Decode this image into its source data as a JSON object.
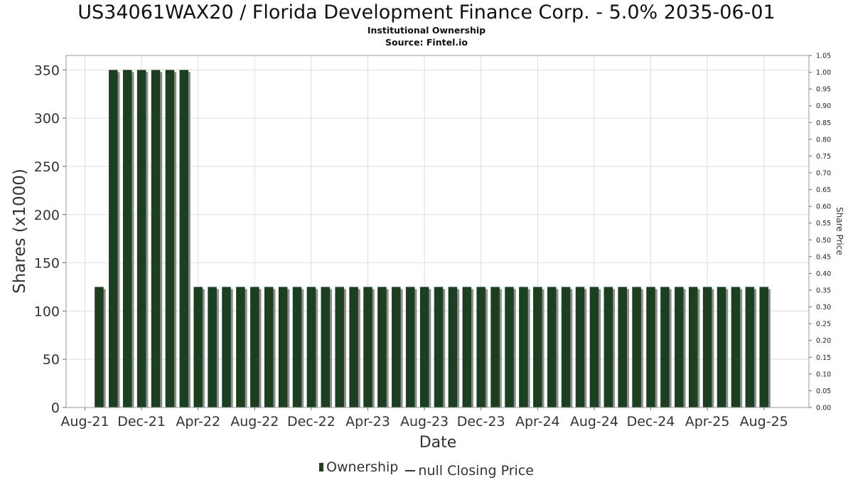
{
  "header": {
    "title": "US34061WAX20 / Florida Development Finance Corp. - 5.0% 2035-06-01",
    "subtitle1": "Institutional Ownership",
    "subtitle2": "Source: Fintel.io"
  },
  "legend": {
    "ownership_label": "Ownership",
    "price_label": "null Closing Price"
  },
  "colors": {
    "bar_fill": "#1c3f22",
    "bar_shadow": "#8c8f8a",
    "grid": "#dddddd"
  },
  "chart_data": {
    "type": "bar",
    "xlabel": "Date",
    "ylabel": "Shares (x1000)",
    "y2label": "Share Price",
    "ylim": [
      0,
      365
    ],
    "y2lim": [
      0,
      1.05
    ],
    "yticks": [
      0,
      50,
      100,
      150,
      200,
      250,
      300,
      350
    ],
    "y2ticks": [
      "0.00",
      "0.05",
      "0.10",
      "0.15",
      "0.20",
      "0.25",
      "0.30",
      "0.35",
      "0.40",
      "0.45",
      "0.50",
      "0.55",
      "0.60",
      "0.65",
      "0.70",
      "0.75",
      "0.80",
      "0.85",
      "0.90",
      "0.95",
      "1.00",
      "1.05"
    ],
    "xticks": [
      "Aug-21",
      "Dec-21",
      "Apr-22",
      "Aug-22",
      "Dec-22",
      "Apr-23",
      "Aug-23",
      "Dec-23",
      "Apr-24",
      "Aug-24",
      "Dec-24",
      "Apr-25",
      "Aug-25"
    ],
    "grid": true,
    "legend_position": "bottom",
    "series": [
      {
        "name": "Ownership",
        "x": [
          "2021-09",
          "2021-10",
          "2021-11",
          "2021-12",
          "2022-01",
          "2022-02",
          "2022-03",
          "2022-04",
          "2022-05",
          "2022-06",
          "2022-07",
          "2022-08",
          "2022-09",
          "2022-10",
          "2022-11",
          "2022-12",
          "2023-01",
          "2023-02",
          "2023-03",
          "2023-04",
          "2023-05",
          "2023-06",
          "2023-07",
          "2023-08",
          "2023-09",
          "2023-10",
          "2023-11",
          "2023-12",
          "2024-01",
          "2024-02",
          "2024-03",
          "2024-04",
          "2024-05",
          "2024-06",
          "2024-07",
          "2024-08",
          "2024-09",
          "2024-10",
          "2024-11",
          "2024-12",
          "2025-01",
          "2025-02",
          "2025-03",
          "2025-04",
          "2025-05",
          "2025-06",
          "2025-07",
          "2025-08"
        ],
        "values": [
          125,
          350,
          350,
          350,
          350,
          350,
          350,
          125,
          125,
          125,
          125,
          125,
          125,
          125,
          125,
          125,
          125,
          125,
          125,
          125,
          125,
          125,
          125,
          125,
          125,
          125,
          125,
          125,
          125,
          125,
          125,
          125,
          125,
          125,
          125,
          125,
          125,
          125,
          125,
          125,
          125,
          125,
          125,
          125,
          125,
          125,
          125,
          125
        ]
      }
    ]
  }
}
